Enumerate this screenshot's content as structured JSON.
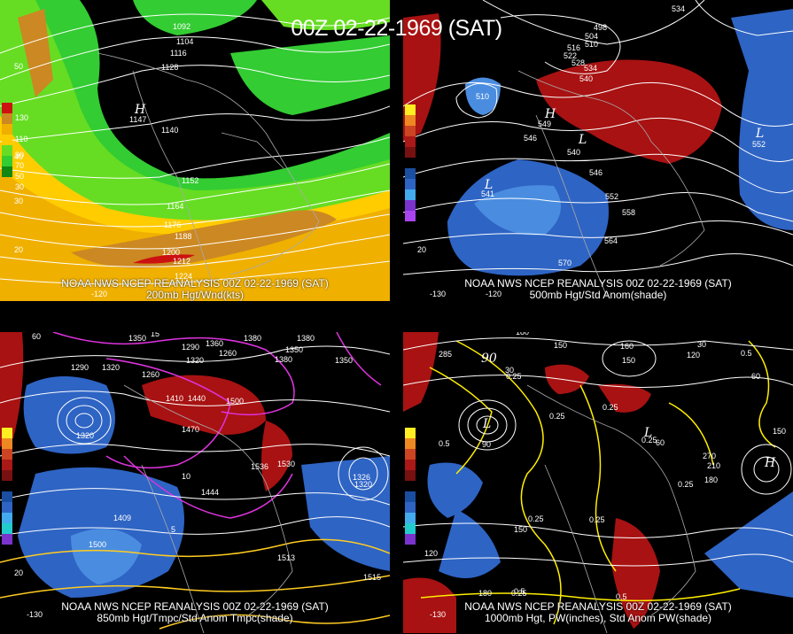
{
  "title": "00Z 02-22-1969 (SAT)",
  "colors": {
    "background": "#000000",
    "contours": "#ffffff",
    "positive_anom": "#b40f0f",
    "negative_anom": "#2e64c4",
    "wind_light": "#33cc33",
    "wind_mid": "#ffcc00",
    "wind_high": "#cc8822",
    "pw_contour": "#ffee00",
    "temp_anom_contour": "#dd33dd"
  },
  "panels": [
    {
      "id": "p200",
      "caption_line1": "NOAA NWS NCEP REANALYSIS 00Z 02-22-1969 (SAT)",
      "caption_line2": "200mb Hgt/Wnd(kts)",
      "legend": [
        "130",
        "110",
        "90",
        "70",
        "50",
        "30"
      ],
      "labels": [
        "1092",
        "1104",
        "1116",
        "1128",
        "1140",
        "1152",
        "1164",
        "1176",
        "1188",
        "1200",
        "1212",
        "1224",
        "H",
        "1147"
      ],
      "axis_labels": [
        "50",
        "40",
        "30",
        "20",
        "-120"
      ]
    },
    {
      "id": "p500",
      "caption_line1": "NOAA NWS NCEP REANALYSIS 00Z 02-22-1969 (SAT)",
      "caption_line2": "500mb Hgt/Std Anom(shade)",
      "legend": [
        "6",
        "5",
        "4",
        "3",
        "2",
        "1",
        "0",
        "1",
        "2",
        "3",
        "4",
        "5"
      ],
      "labels": [
        "534",
        "498",
        "504",
        "510",
        "516",
        "522",
        "528",
        "534",
        "540",
        "546",
        "546",
        "552",
        "558",
        "564",
        "570",
        "510",
        "540",
        "549",
        "541",
        "552",
        "H",
        "L",
        "L",
        "L"
      ],
      "axis_labels": [
        "20",
        "-130",
        "-120"
      ]
    },
    {
      "id": "p850",
      "caption_line1": "NOAA NWS NCEP REANALYSIS 00Z 02-22-1969 (SAT)",
      "caption_line2": "850mb Hgt/Tmpc/Std Anom Tmpc(shade)",
      "legend": [
        "5",
        "4",
        "3",
        "2",
        "1",
        "0",
        "1",
        "2",
        "3",
        "4",
        "5",
        "6"
      ],
      "labels": [
        "1350",
        "1380",
        "1290",
        "1260",
        "1320",
        "1350",
        "1320",
        "1380",
        "1350",
        "1410",
        "1440",
        "1500",
        "1470",
        "1530",
        "1500",
        "1320",
        "1320",
        "1380",
        "1290",
        "1260",
        "1360",
        "1409",
        "1444",
        "1536",
        "1326",
        "1513",
        "1515",
        "15",
        "10",
        "5",
        "60",
        "20",
        "-130"
      ],
      "axis_labels": [
        "60",
        "20",
        "-130"
      ]
    },
    {
      "id": "p1000",
      "caption_line1": "NOAA NWS NCEP REANALYSIS 00Z 02-22-1969 (SAT)",
      "caption_line2": "1000mb Hgt, PW(inches), Std Anom PW(shade)",
      "legend": [
        "6",
        "5",
        "4",
        "3",
        "2",
        "1",
        "0",
        "1",
        "2",
        "3",
        "4",
        "5"
      ],
      "labels": [
        "180",
        "150",
        "160",
        "150",
        "30",
        "0.5",
        "60",
        "0.25",
        "0.25",
        "0.25",
        "0.25",
        "0.25",
        "0.25",
        "0.25",
        "0.5",
        "0.5",
        "90",
        "60",
        "270",
        "210",
        "180",
        "150",
        "120",
        "180",
        "150",
        "120",
        "30",
        "0.25",
        "285",
        "90",
        "L",
        "L",
        "H",
        "H"
      ],
      "axis_labels": [
        "-130",
        "0.5"
      ]
    }
  ]
}
